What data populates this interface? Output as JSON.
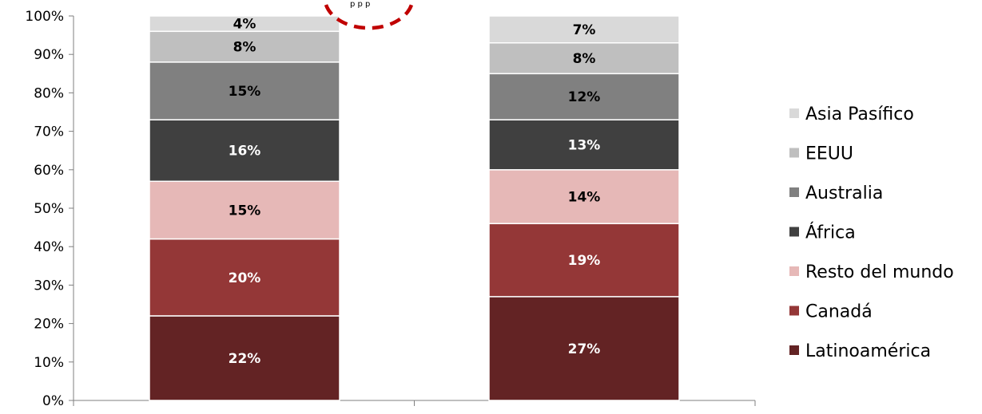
{
  "chart_data": {
    "type": "bar",
    "stacked": true,
    "yscale": "percent",
    "ylim": [
      0,
      100
    ],
    "yticks": [
      "0%",
      "10%",
      "20%",
      "30%",
      "40%",
      "50%",
      "60%",
      "70%",
      "80%",
      "90%",
      "100%"
    ],
    "categories": [
      "",
      ""
    ],
    "series": [
      {
        "name": "Latinoamérica",
        "color": "#632324",
        "label_color": "#ffffff",
        "values": [
          22,
          27
        ],
        "labels": [
          "22%",
          "27%"
        ]
      },
      {
        "name": "Canadá",
        "color": "#943737",
        "label_color": "#ffffff",
        "values": [
          20,
          19
        ],
        "labels": [
          "20%",
          "19%"
        ]
      },
      {
        "name": "Resto del mundo",
        "color": "#e6b8b7",
        "label_color": "#000000",
        "values": [
          15,
          14
        ],
        "labels": [
          "15%",
          "14%"
        ]
      },
      {
        "name": "África",
        "color": "#404040",
        "label_color": "#ffffff",
        "values": [
          16,
          13
        ],
        "labels": [
          "16%",
          "13%"
        ]
      },
      {
        "name": "Australia",
        "color": "#808080",
        "label_color": "#000000",
        "values": [
          15,
          12
        ],
        "labels": [
          "15%",
          "12%"
        ]
      },
      {
        "name": "EEUU",
        "color": "#bfbfbf",
        "label_color": "#000000",
        "values": [
          8,
          8
        ],
        "labels": [
          "8%",
          "8%"
        ]
      },
      {
        "name": "Asia Pasífico",
        "color": "#d9d9d9",
        "label_color": "#000000",
        "values": [
          4,
          7
        ],
        "labels": [
          "4%",
          "7%"
        ]
      }
    ],
    "legend_position": "right",
    "legend_order": [
      "Asia Pasífico",
      "EEUU",
      "Australia",
      "África",
      "Resto del mundo",
      "Canadá",
      "Latinoamérica"
    ],
    "grid": false,
    "annotation": {
      "shape": "dashed-circle",
      "color": "#c00000",
      "text": "p p p"
    }
  }
}
